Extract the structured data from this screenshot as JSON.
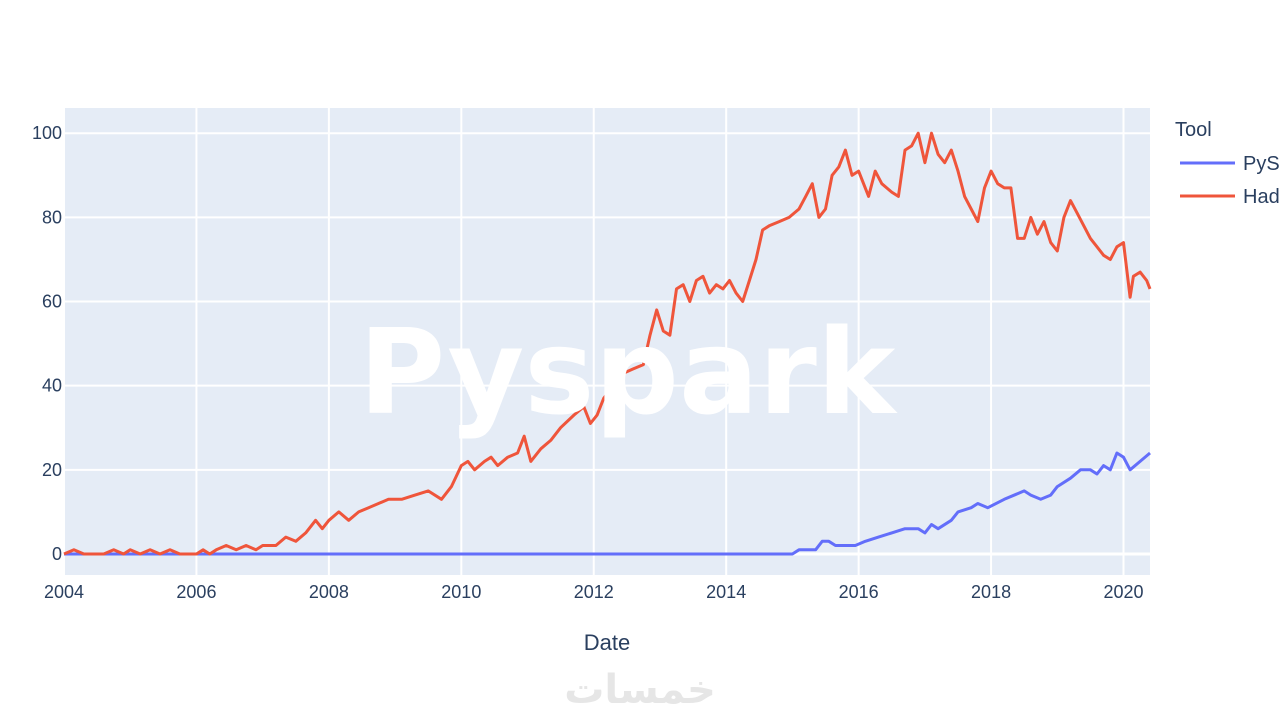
{
  "chart_data": {
    "type": "line",
    "xlabel": "Date",
    "ylabel": "",
    "legend_title": "Tool",
    "legend_placement": "right",
    "xlim": [
      2004,
      2020.4
    ],
    "ylim": [
      -5,
      106
    ],
    "x_ticks": [
      2004,
      2006,
      2008,
      2010,
      2012,
      2014,
      2016,
      2018,
      2020
    ],
    "y_ticks": [
      0,
      20,
      40,
      60,
      80,
      100
    ],
    "grid": true,
    "plot_bg": "#e5ecf6",
    "series": [
      {
        "name": "PyS",
        "color": "#636efa",
        "points": [
          [
            2004,
            0
          ],
          [
            2015.0,
            0
          ],
          [
            2015.1,
            1
          ],
          [
            2015.35,
            1
          ],
          [
            2015.45,
            3
          ],
          [
            2015.55,
            3
          ],
          [
            2015.65,
            2
          ],
          [
            2015.95,
            2
          ],
          [
            2016.1,
            3
          ],
          [
            2016.3,
            4
          ],
          [
            2016.5,
            5
          ],
          [
            2016.7,
            6
          ],
          [
            2016.9,
            6
          ],
          [
            2017.0,
            5
          ],
          [
            2017.1,
            7
          ],
          [
            2017.2,
            6
          ],
          [
            2017.4,
            8
          ],
          [
            2017.5,
            10
          ],
          [
            2017.7,
            11
          ],
          [
            2017.8,
            12
          ],
          [
            2017.95,
            11
          ],
          [
            2018.2,
            13
          ],
          [
            2018.5,
            15
          ],
          [
            2018.6,
            14
          ],
          [
            2018.75,
            13
          ],
          [
            2018.9,
            14
          ],
          [
            2019.0,
            16
          ],
          [
            2019.2,
            18
          ],
          [
            2019.35,
            20
          ],
          [
            2019.5,
            20
          ],
          [
            2019.6,
            19
          ],
          [
            2019.7,
            21
          ],
          [
            2019.8,
            20
          ],
          [
            2019.9,
            24
          ],
          [
            2020.0,
            23
          ],
          [
            2020.1,
            20
          ],
          [
            2020.25,
            22
          ],
          [
            2020.4,
            24
          ]
        ]
      },
      {
        "name": "Had",
        "color": "#ef553b",
        "points": [
          [
            2004,
            0
          ],
          [
            2004.15,
            1
          ],
          [
            2004.3,
            0
          ],
          [
            2004.6,
            0
          ],
          [
            2004.75,
            1
          ],
          [
            2004.9,
            0
          ],
          [
            2005.0,
            1
          ],
          [
            2005.15,
            0
          ],
          [
            2005.3,
            1
          ],
          [
            2005.45,
            0
          ],
          [
            2005.6,
            1
          ],
          [
            2005.75,
            0
          ],
          [
            2006.0,
            0
          ],
          [
            2006.1,
            1
          ],
          [
            2006.2,
            0
          ],
          [
            2006.3,
            1
          ],
          [
            2006.45,
            2
          ],
          [
            2006.6,
            1
          ],
          [
            2006.75,
            2
          ],
          [
            2006.9,
            1
          ],
          [
            2007.0,
            2
          ],
          [
            2007.2,
            2
          ],
          [
            2007.35,
            4
          ],
          [
            2007.5,
            3
          ],
          [
            2007.65,
            5
          ],
          [
            2007.8,
            8
          ],
          [
            2007.9,
            6
          ],
          [
            2008.0,
            8
          ],
          [
            2008.15,
            10
          ],
          [
            2008.3,
            8
          ],
          [
            2008.45,
            10
          ],
          [
            2008.6,
            11
          ],
          [
            2008.75,
            12
          ],
          [
            2008.9,
            13
          ],
          [
            2009.1,
            13
          ],
          [
            2009.3,
            14
          ],
          [
            2009.5,
            15
          ],
          [
            2009.7,
            13
          ],
          [
            2009.85,
            16
          ],
          [
            2010.0,
            21
          ],
          [
            2010.1,
            22
          ],
          [
            2010.2,
            20
          ],
          [
            2010.35,
            22
          ],
          [
            2010.45,
            23
          ],
          [
            2010.55,
            21
          ],
          [
            2010.7,
            23
          ],
          [
            2010.85,
            24
          ],
          [
            2010.95,
            28
          ],
          [
            2011.05,
            22
          ],
          [
            2011.2,
            25
          ],
          [
            2011.35,
            27
          ],
          [
            2011.5,
            30
          ],
          [
            2011.7,
            33
          ],
          [
            2011.85,
            35
          ],
          [
            2011.95,
            31
          ],
          [
            2012.05,
            33
          ],
          [
            2012.15,
            37
          ],
          [
            2012.3,
            40
          ],
          [
            2012.45,
            43
          ],
          [
            2012.6,
            44
          ],
          [
            2012.75,
            45
          ],
          [
            2012.85,
            52
          ],
          [
            2012.95,
            58
          ],
          [
            2013.05,
            53
          ],
          [
            2013.15,
            52
          ],
          [
            2013.25,
            63
          ],
          [
            2013.35,
            64
          ],
          [
            2013.45,
            60
          ],
          [
            2013.55,
            65
          ],
          [
            2013.65,
            66
          ],
          [
            2013.75,
            62
          ],
          [
            2013.85,
            64
          ],
          [
            2013.95,
            63
          ],
          [
            2014.05,
            65
          ],
          [
            2014.15,
            62
          ],
          [
            2014.25,
            60
          ],
          [
            2014.35,
            65
          ],
          [
            2014.45,
            70
          ],
          [
            2014.55,
            77
          ],
          [
            2014.65,
            78
          ],
          [
            2014.8,
            79
          ],
          [
            2014.95,
            80
          ],
          [
            2015.1,
            82
          ],
          [
            2015.2,
            85
          ],
          [
            2015.3,
            88
          ],
          [
            2015.4,
            80
          ],
          [
            2015.5,
            82
          ],
          [
            2015.6,
            90
          ],
          [
            2015.7,
            92
          ],
          [
            2015.8,
            96
          ],
          [
            2015.9,
            90
          ],
          [
            2016.0,
            91
          ],
          [
            2016.15,
            85
          ],
          [
            2016.25,
            91
          ],
          [
            2016.35,
            88
          ],
          [
            2016.5,
            86
          ],
          [
            2016.6,
            85
          ],
          [
            2016.7,
            96
          ],
          [
            2016.8,
            97
          ],
          [
            2016.9,
            100
          ],
          [
            2017.0,
            93
          ],
          [
            2017.1,
            100
          ],
          [
            2017.2,
            95
          ],
          [
            2017.3,
            93
          ],
          [
            2017.4,
            96
          ],
          [
            2017.5,
            91
          ],
          [
            2017.6,
            85
          ],
          [
            2017.7,
            82
          ],
          [
            2017.8,
            79
          ],
          [
            2017.9,
            87
          ],
          [
            2018.0,
            91
          ],
          [
            2018.1,
            88
          ],
          [
            2018.2,
            87
          ],
          [
            2018.3,
            87
          ],
          [
            2018.4,
            75
          ],
          [
            2018.5,
            75
          ],
          [
            2018.6,
            80
          ],
          [
            2018.7,
            76
          ],
          [
            2018.8,
            79
          ],
          [
            2018.9,
            74
          ],
          [
            2019.0,
            72
          ],
          [
            2019.1,
            80
          ],
          [
            2019.2,
            84
          ],
          [
            2019.3,
            81
          ],
          [
            2019.4,
            78
          ],
          [
            2019.5,
            75
          ],
          [
            2019.6,
            73
          ],
          [
            2019.7,
            71
          ],
          [
            2019.8,
            70
          ],
          [
            2019.9,
            73
          ],
          [
            2020.0,
            74
          ],
          [
            2020.1,
            61
          ],
          [
            2020.15,
            66
          ],
          [
            2020.25,
            67
          ],
          [
            2020.3,
            66
          ],
          [
            2020.35,
            65
          ],
          [
            2020.4,
            63
          ]
        ]
      }
    ]
  },
  "watermark": {
    "text": "Pyspark"
  },
  "footer": {
    "logo_text": "خمسات"
  }
}
